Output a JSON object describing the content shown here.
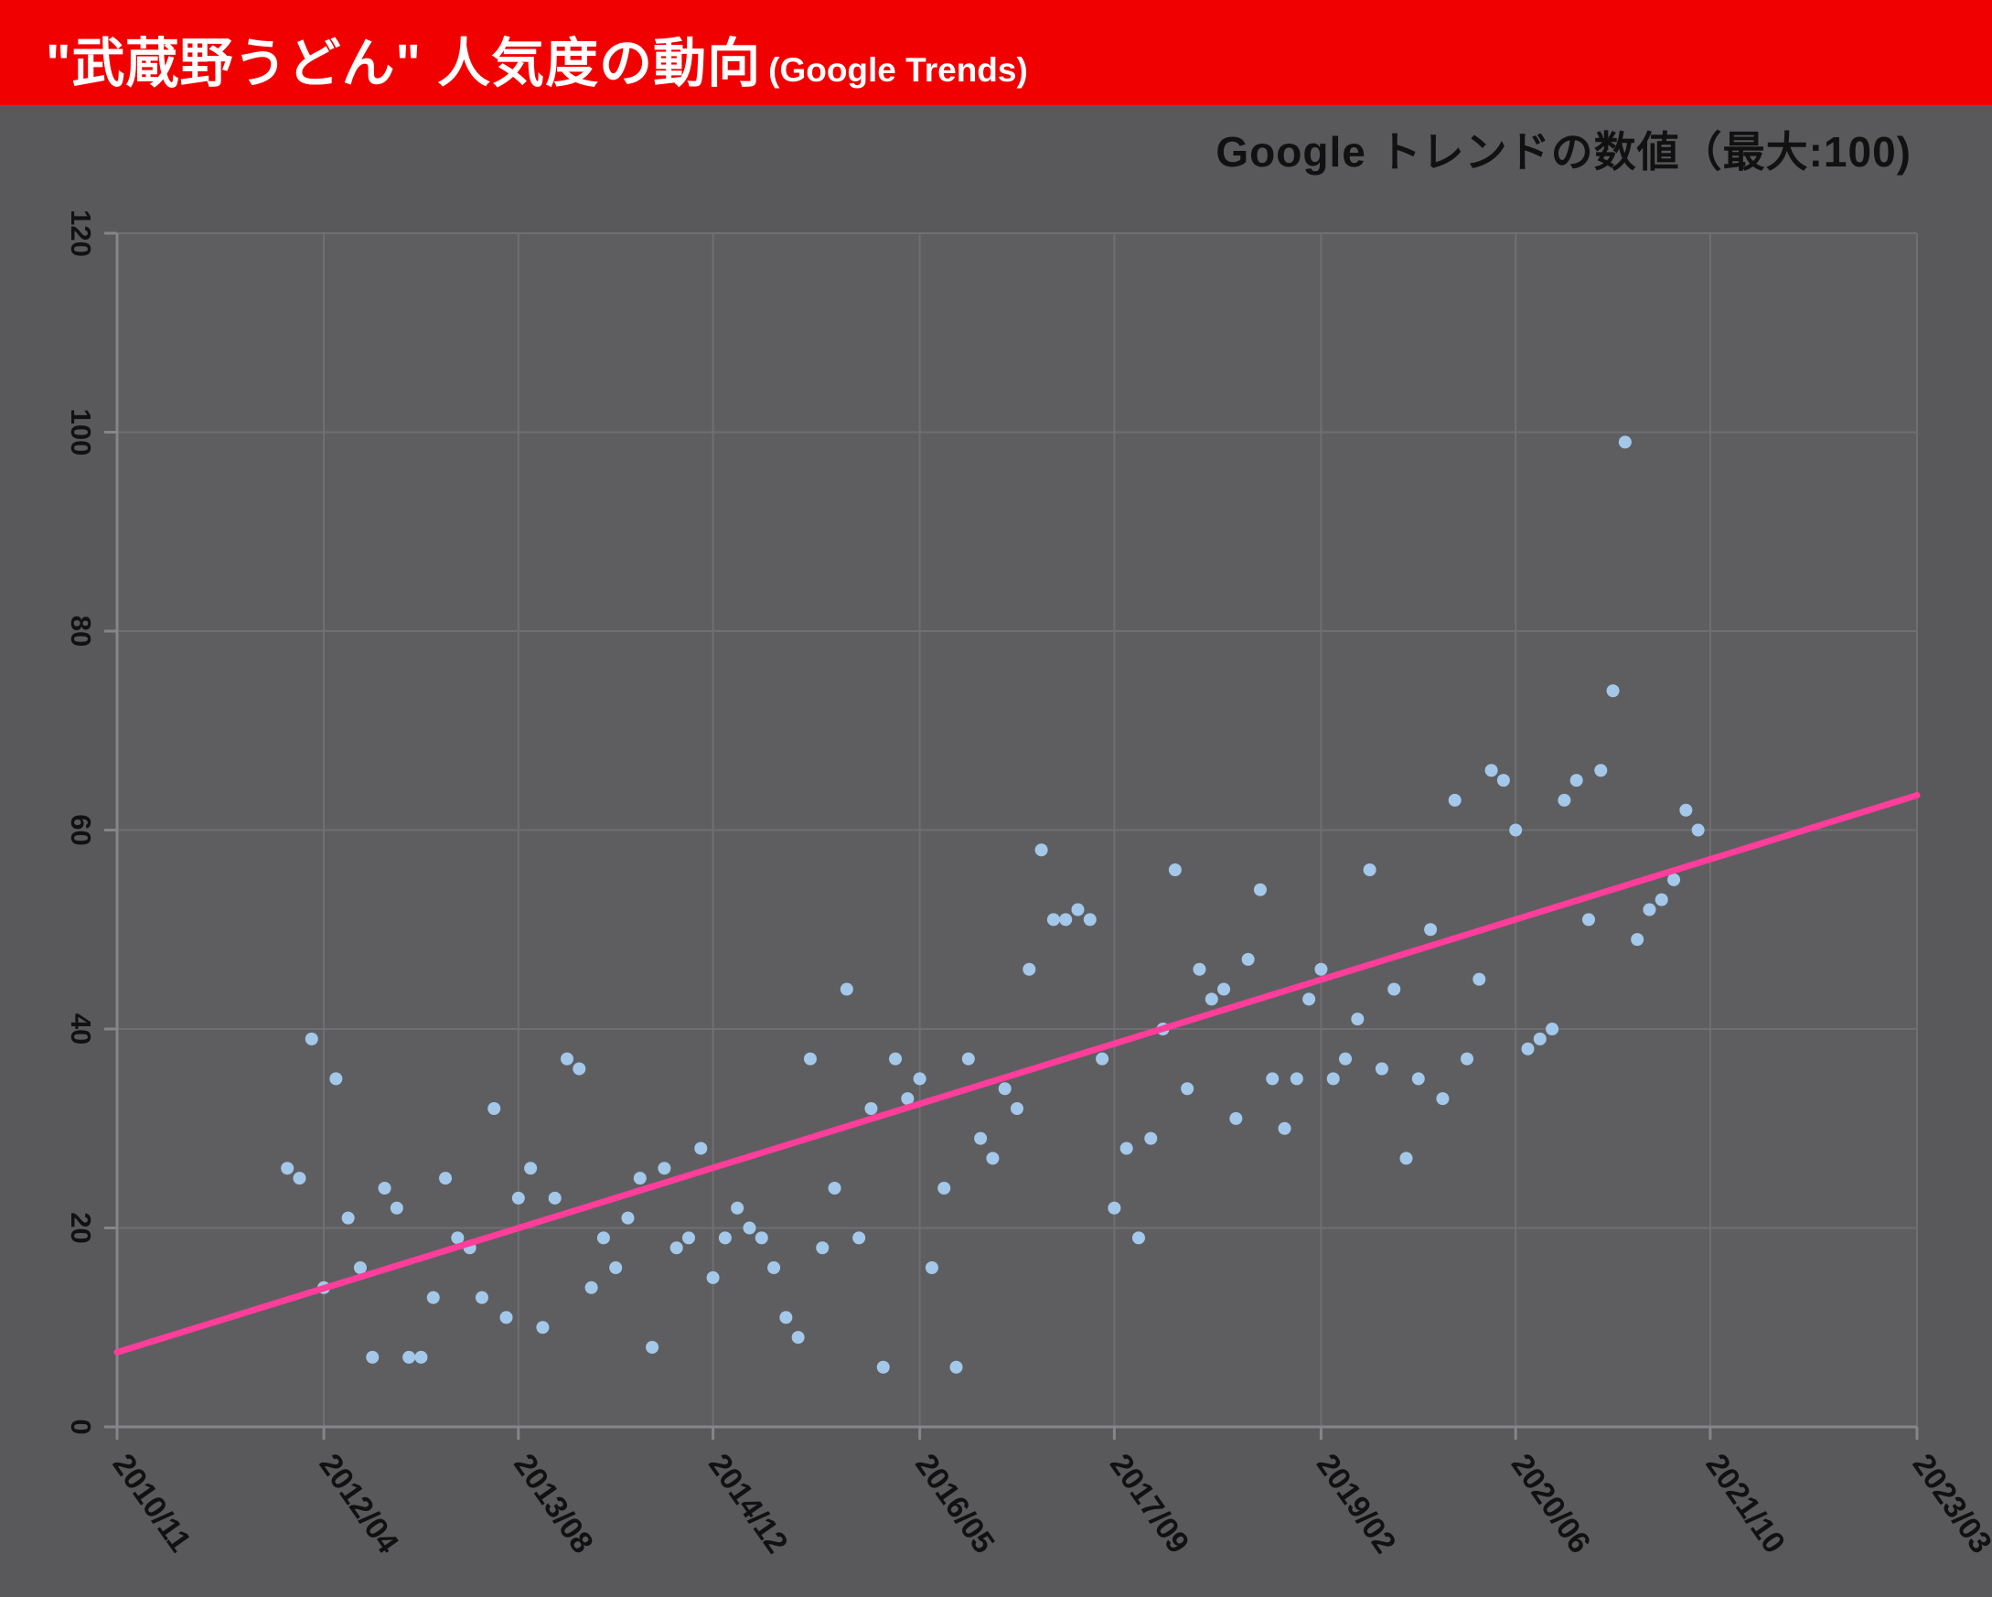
{
  "header": {
    "title": "\"武蔵野うどん\" 人気度の動向",
    "subtitle": "(Google Trends)"
  },
  "chart_note": "Google トレンドの数値（最大:100)",
  "colors": {
    "header_bg": "#f10000",
    "page_bg": "#59595b",
    "plot_bg": "#5e5e60",
    "grid": "#6f6f71",
    "axis": "#85858a",
    "tick_text": "#111111",
    "title_text": "#ffffff",
    "note_text": "#111111",
    "point": "#a4c8ea",
    "trend": "#ff3d9b"
  },
  "chart_data": {
    "type": "scatter",
    "title": "\"武蔵野うどん\" 人気度の動向 (Google Trends)",
    "note": "Google トレンドの数値（最大:100)",
    "grid": true,
    "ylim": [
      0,
      120
    ],
    "y_ticks": [
      0,
      20,
      40,
      60,
      80,
      100,
      120
    ],
    "x_range_months": [
      0,
      148
    ],
    "x_ticks": [
      0,
      17,
      33,
      49,
      66,
      82,
      99,
      115,
      131,
      148
    ],
    "x_tick_labels": [
      "2010/11",
      "2012/04",
      "2013/08",
      "2014/12",
      "2016/05",
      "2017/09",
      "2019/02",
      "2020/06",
      "2021/10",
      "2023/03"
    ],
    "x_unit": "month index from 2010/11",
    "point_color": "#a4c8ea",
    "points": [
      [
        14,
        26
      ],
      [
        15,
        25
      ],
      [
        16,
        39
      ],
      [
        17,
        14
      ],
      [
        18,
        35
      ],
      [
        19,
        21
      ],
      [
        20,
        16
      ],
      [
        21,
        7
      ],
      [
        22,
        24
      ],
      [
        23,
        22
      ],
      [
        24,
        7
      ],
      [
        25,
        7
      ],
      [
        26,
        13
      ],
      [
        27,
        25
      ],
      [
        28,
        19
      ],
      [
        29,
        18
      ],
      [
        30,
        13
      ],
      [
        31,
        32
      ],
      [
        32,
        11
      ],
      [
        33,
        23
      ],
      [
        34,
        26
      ],
      [
        35,
        10
      ],
      [
        36,
        23
      ],
      [
        37,
        37
      ],
      [
        38,
        36
      ],
      [
        39,
        14
      ],
      [
        40,
        19
      ],
      [
        41,
        16
      ],
      [
        42,
        21
      ],
      [
        43,
        25
      ],
      [
        44,
        8
      ],
      [
        45,
        26
      ],
      [
        46,
        18
      ],
      [
        47,
        19
      ],
      [
        48,
        28
      ],
      [
        49,
        15
      ],
      [
        50,
        19
      ],
      [
        51,
        22
      ],
      [
        52,
        20
      ],
      [
        53,
        19
      ],
      [
        54,
        16
      ],
      [
        55,
        11
      ],
      [
        56,
        9
      ],
      [
        57,
        37
      ],
      [
        58,
        18
      ],
      [
        59,
        24
      ],
      [
        60,
        44
      ],
      [
        61,
        19
      ],
      [
        62,
        32
      ],
      [
        63,
        6
      ],
      [
        64,
        37
      ],
      [
        65,
        33
      ],
      [
        66,
        35
      ],
      [
        67,
        16
      ],
      [
        68,
        24
      ],
      [
        69,
        6
      ],
      [
        70,
        37
      ],
      [
        71,
        29
      ],
      [
        72,
        27
      ],
      [
        73,
        34
      ],
      [
        74,
        32
      ],
      [
        75,
        46
      ],
      [
        76,
        58
      ],
      [
        77,
        51
      ],
      [
        78,
        51
      ],
      [
        79,
        52
      ],
      [
        80,
        51
      ],
      [
        81,
        37
      ],
      [
        82,
        22
      ],
      [
        83,
        28
      ],
      [
        84,
        19
      ],
      [
        85,
        29
      ],
      [
        86,
        40
      ],
      [
        87,
        56
      ],
      [
        88,
        34
      ],
      [
        89,
        46
      ],
      [
        90,
        43
      ],
      [
        91,
        44
      ],
      [
        92,
        31
      ],
      [
        93,
        47
      ],
      [
        94,
        54
      ],
      [
        95,
        35
      ],
      [
        96,
        30
      ],
      [
        97,
        35
      ],
      [
        98,
        43
      ],
      [
        99,
        46
      ],
      [
        100,
        35
      ],
      [
        101,
        37
      ],
      [
        102,
        41
      ],
      [
        103,
        56
      ],
      [
        104,
        36
      ],
      [
        105,
        44
      ],
      [
        106,
        27
      ],
      [
        107,
        35
      ],
      [
        108,
        50
      ],
      [
        109,
        33
      ],
      [
        110,
        63
      ],
      [
        111,
        37
      ],
      [
        112,
        45
      ],
      [
        113,
        66
      ],
      [
        114,
        65
      ],
      [
        115,
        60
      ],
      [
        116,
        38
      ],
      [
        117,
        39
      ],
      [
        118,
        40
      ],
      [
        119,
        63
      ],
      [
        120,
        65
      ],
      [
        121,
        51
      ],
      [
        122,
        66
      ],
      [
        123,
        74
      ],
      [
        124,
        99
      ],
      [
        125,
        49
      ],
      [
        126,
        52
      ],
      [
        127,
        53
      ],
      [
        128,
        55
      ],
      [
        129,
        62
      ],
      [
        130,
        60
      ]
    ],
    "trend_line": {
      "x": [
        0,
        148
      ],
      "y": [
        7.5,
        63.5
      ],
      "color": "#ff3d9b"
    }
  }
}
